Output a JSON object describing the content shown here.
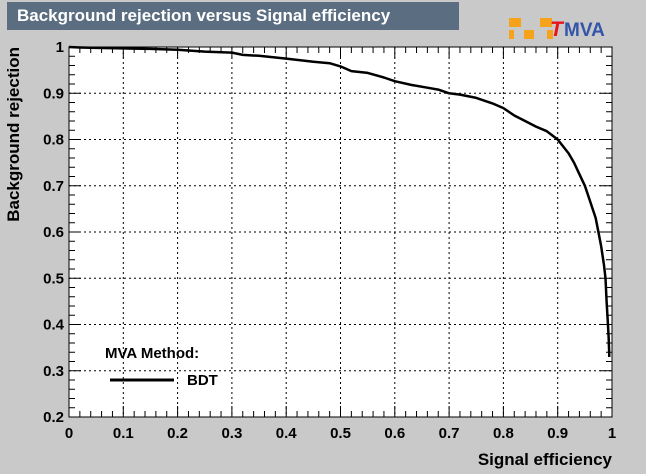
{
  "chart_data": {
    "type": "line",
    "title": "Background rejection versus Signal efficiency",
    "xlabel": "Signal efficiency",
    "ylabel": "Background rejection",
    "xlim": [
      0,
      1
    ],
    "ylim": [
      0.2,
      1
    ],
    "x_ticks": [
      "0",
      "0.1",
      "0.2",
      "0.3",
      "0.4",
      "0.5",
      "0.6",
      "0.7",
      "0.8",
      "0.9",
      "1"
    ],
    "y_ticks": [
      "0.2",
      "0.3",
      "0.4",
      "0.5",
      "0.6",
      "0.7",
      "0.8",
      "0.9",
      "1"
    ],
    "grid": true,
    "legend": {
      "header": "MVA Method:",
      "placement": "bottom-left",
      "entries": [
        "BDT"
      ]
    },
    "series": [
      {
        "name": "BDT",
        "color": "#000000",
        "x": [
          0.0,
          0.02,
          0.05,
          0.1,
          0.15,
          0.2,
          0.25,
          0.3,
          0.32,
          0.35,
          0.4,
          0.45,
          0.48,
          0.5,
          0.52,
          0.55,
          0.58,
          0.6,
          0.63,
          0.66,
          0.68,
          0.7,
          0.72,
          0.75,
          0.78,
          0.8,
          0.82,
          0.84,
          0.86,
          0.88,
          0.9,
          0.92,
          0.93,
          0.94,
          0.95,
          0.96,
          0.97,
          0.975,
          0.98,
          0.985,
          0.988,
          0.99,
          0.992,
          0.994,
          0.995
        ],
        "y": [
          1.0,
          0.999,
          0.998,
          0.997,
          0.996,
          0.994,
          0.99,
          0.988,
          0.983,
          0.981,
          0.975,
          0.968,
          0.965,
          0.958,
          0.948,
          0.944,
          0.934,
          0.926,
          0.918,
          0.912,
          0.908,
          0.9,
          0.897,
          0.89,
          0.878,
          0.868,
          0.852,
          0.84,
          0.828,
          0.818,
          0.8,
          0.77,
          0.75,
          0.725,
          0.7,
          0.665,
          0.63,
          0.6,
          0.57,
          0.53,
          0.5,
          0.45,
          0.41,
          0.37,
          0.33
        ]
      }
    ]
  },
  "logo": {
    "t": "T",
    "rest": "MVA",
    "accent_color": "#e8141a",
    "text_color": "#3355aa",
    "box_color": "#f7a21b"
  }
}
